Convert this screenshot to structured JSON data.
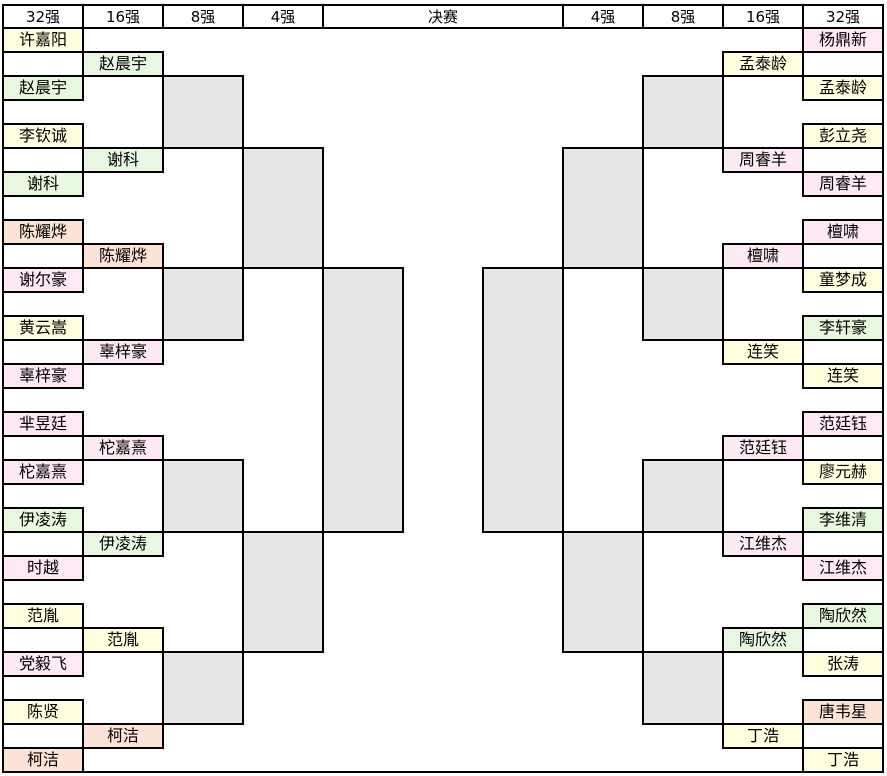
{
  "headers": {
    "left": [
      "32强",
      "16强",
      "8强",
      "4强"
    ],
    "final": "决赛",
    "right": [
      "4强",
      "8强",
      "16强",
      "32强"
    ]
  },
  "colors": {
    "yellow": "#ffffe0",
    "green": "#e9f9e1",
    "pink": "#fdeaf5",
    "orange": "#fde3d6",
    "gray": "#e6e6e6"
  },
  "left": {
    "round32": [
      {
        "name": "许嘉阳",
        "color": "yellow"
      },
      {
        "name": "赵晨宇",
        "color": "green"
      },
      {
        "name": "李钦诚",
        "color": "yellow"
      },
      {
        "name": "谢科",
        "color": "green"
      },
      {
        "name": "陈耀烨",
        "color": "orange"
      },
      {
        "name": "谢尔豪",
        "color": "pink"
      },
      {
        "name": "黄云嵩",
        "color": "yellow"
      },
      {
        "name": "辜梓豪",
        "color": "pink"
      },
      {
        "name": "芈昱廷",
        "color": "pink"
      },
      {
        "name": "柁嘉熹",
        "color": "pink"
      },
      {
        "name": "伊凌涛",
        "color": "green"
      },
      {
        "name": "时越",
        "color": "pink"
      },
      {
        "name": "范胤",
        "color": "yellow"
      },
      {
        "name": "党毅飞",
        "color": "pink"
      },
      {
        "name": "陈贤",
        "color": "yellow"
      },
      {
        "name": "柯洁",
        "color": "orange"
      }
    ],
    "round16": [
      {
        "name": "赵晨宇",
        "color": "green"
      },
      {
        "name": "谢科",
        "color": "green"
      },
      {
        "name": "陈耀烨",
        "color": "orange"
      },
      {
        "name": "辜梓豪",
        "color": "pink"
      },
      {
        "name": "柁嘉熹",
        "color": "pink"
      },
      {
        "name": "伊凌涛",
        "color": "green"
      },
      {
        "name": "范胤",
        "color": "yellow"
      },
      {
        "name": "柯洁",
        "color": "orange"
      }
    ]
  },
  "right": {
    "round32": [
      {
        "name": "杨鼎新",
        "color": "pink"
      },
      {
        "name": "孟泰龄",
        "color": "yellow"
      },
      {
        "name": "彭立尧",
        "color": "yellow"
      },
      {
        "name": "周睿羊",
        "color": "pink"
      },
      {
        "name": "檀啸",
        "color": "pink"
      },
      {
        "name": "童梦成",
        "color": "yellow"
      },
      {
        "name": "李轩豪",
        "color": "green"
      },
      {
        "name": "连笑",
        "color": "yellow"
      },
      {
        "name": "范廷钰",
        "color": "pink"
      },
      {
        "name": "廖元赫",
        "color": "yellow"
      },
      {
        "name": "李维清",
        "color": "green"
      },
      {
        "name": "江维杰",
        "color": "pink"
      },
      {
        "name": "陶欣然",
        "color": "green"
      },
      {
        "name": "张涛",
        "color": "yellow"
      },
      {
        "name": "唐韦星",
        "color": "orange"
      },
      {
        "name": "丁浩",
        "color": "yellow"
      }
    ],
    "round16": [
      {
        "name": "孟泰龄",
        "color": "yellow"
      },
      {
        "name": "周睿羊",
        "color": "pink"
      },
      {
        "name": "檀啸",
        "color": "pink"
      },
      {
        "name": "连笑",
        "color": "yellow"
      },
      {
        "name": "范廷钰",
        "color": "pink"
      },
      {
        "name": "江维杰",
        "color": "pink"
      },
      {
        "name": "陶欣然",
        "color": "green"
      },
      {
        "name": "丁浩",
        "color": "yellow"
      }
    ]
  }
}
